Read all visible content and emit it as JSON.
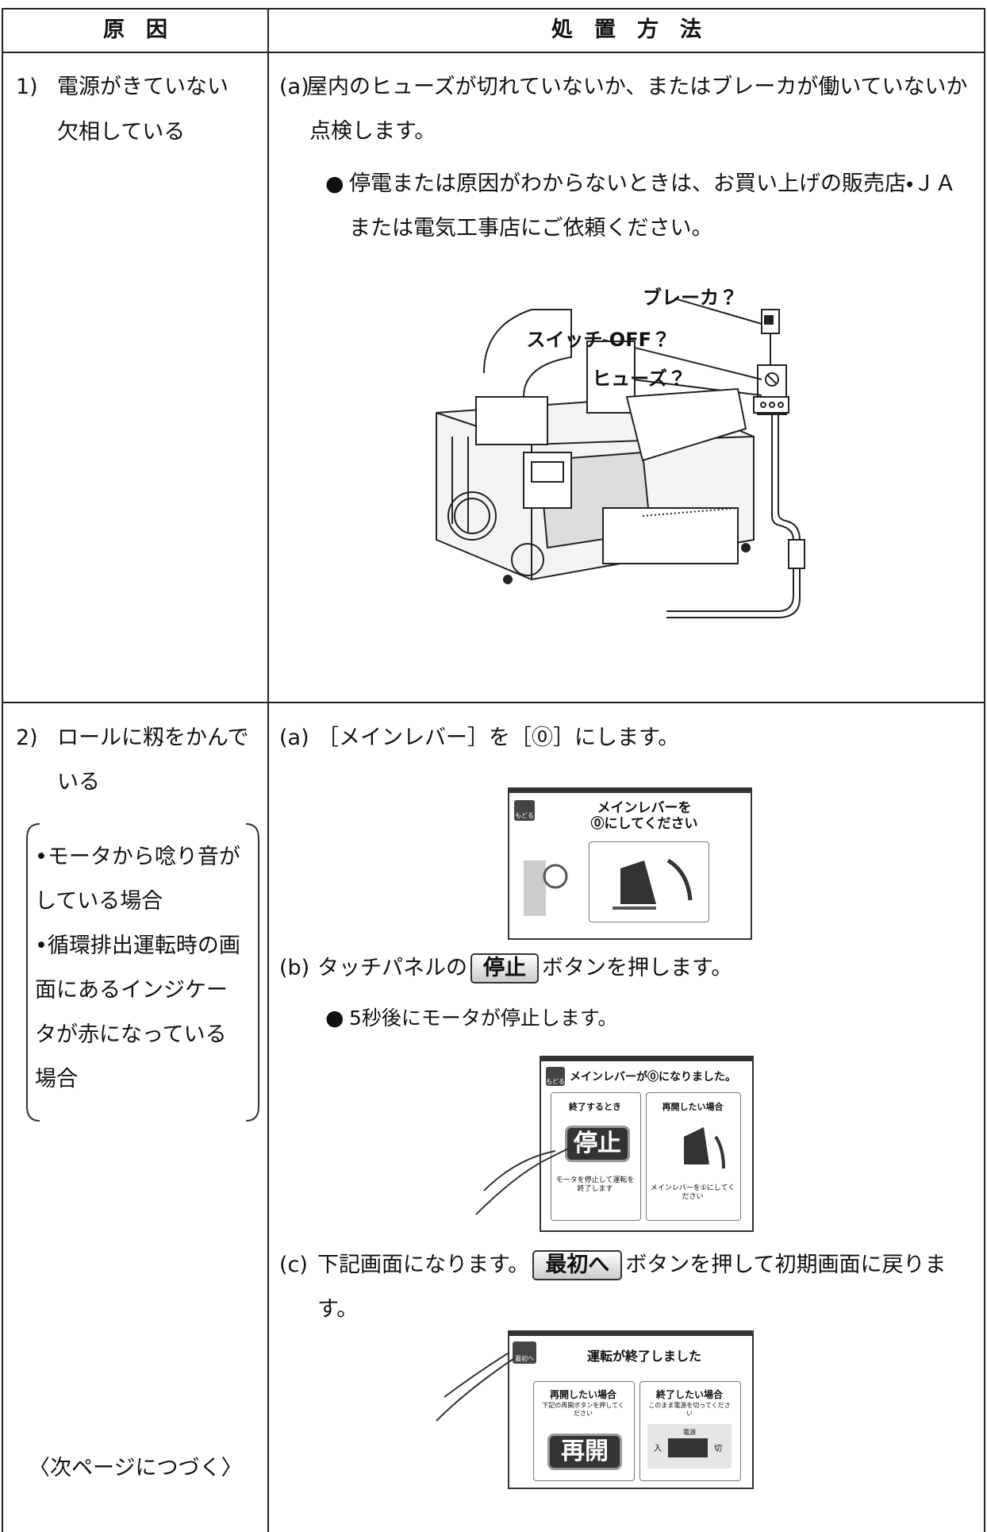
{
  "table": {
    "header": {
      "cause": "原　因",
      "remedy": "処　置　方　法"
    },
    "rows": [
      {
        "cause": {
          "number": "1)",
          "lines": [
            "電源がきていない",
            "欠相している"
          ]
        },
        "remedy": {
          "steps": [
            {
              "label": "(a)",
              "text": "屋内のヒューズが切れていないか、またはブレーカが働いていないか点検します。"
            }
          ],
          "bullet": "停電または原因がわからないときは、お買い上げの販売店・ＪＡまたは電気工事店にご依頼ください。",
          "figure": {
            "labels": [
              "ブレーカ？",
              "スイッチ OFF？",
              "ヒューズ？"
            ]
          }
        }
      },
      {
        "cause": {
          "number": "2)",
          "text": "ロールに籾をかんでいる",
          "conditions": [
            "•モータから唸り音がしている場合",
            "•循環排出運転時の画面にあるインジケータが赤になっている場合"
          ],
          "note": "〈次ページにつづく〉"
        },
        "remedy": {
          "step_a": {
            "label": "(a)",
            "text": "［メインレバー］を［⓪］にします。",
            "screen": {
              "back": "もどる",
              "message": [
                "メインレバーを",
                "⓪にしてください"
              ]
            }
          },
          "step_b": {
            "label": "(b)",
            "before": "タッチパネルの",
            "button": "停止",
            "after": "ボタンを押します。",
            "bullet": "5秒後にモータが停止します。",
            "screen": {
              "back": "もどる",
              "title": "メインレバーが⓪になりました。",
              "left_heading": "終了するとき",
              "left_button": "停止",
              "left_note": "モータを停止して運転を終了します",
              "right_heading": "再開したい場合",
              "right_note": "メインレバーを①にしてください"
            }
          },
          "step_c": {
            "label": "(c)",
            "before": "下記画面になります。",
            "button": "最初へ",
            "after": "ボタンを押して初期画面に戻ります。",
            "screen": {
              "back": "最初へ",
              "title": "運転が終了しました",
              "left_heading": "再開したい場合",
              "left_note": "下記の再開ボタンを押してください",
              "left_button": "再開",
              "right_heading": "終了したい場合",
              "right_note": "このまま電源を切ってください",
              "switch_label": "電源",
              "on": "入",
              "off": "切"
            }
          }
        }
      }
    ]
  }
}
